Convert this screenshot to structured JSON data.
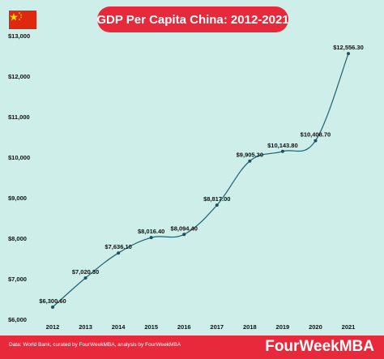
{
  "flag_icon": "china-flag-icon",
  "colors": {
    "background": "#cdeee9",
    "accent": "#e8293b",
    "line": "#1f5f6e",
    "point": "#1f4f5a"
  },
  "header": {
    "title": "GDP Per Capita China: 2012-2021"
  },
  "chart_data": {
    "type": "line",
    "title": "GDP Per Capita China: 2012-2021",
    "xlabel": "",
    "ylabel": "",
    "x": [
      2012,
      2013,
      2014,
      2015,
      2016,
      2017,
      2018,
      2019,
      2020,
      2021
    ],
    "x_tick_labels": [
      "2012",
      "2013",
      "2014",
      "2015",
      "2016",
      "2017",
      "2018",
      "2019",
      "2020",
      "2021"
    ],
    "values": [
      6300.6,
      7020.3,
      7636.1,
      8016.4,
      8094.4,
      8817.0,
      9905.3,
      10143.8,
      10408.7,
      12556.3
    ],
    "data_labels": [
      "$6,300.60",
      "$7,020.30",
      "$7,636.10",
      "$8,016.40",
      "$8,094.40",
      "$8,817.00",
      "$9,905.30",
      "$10,143.80",
      "$10,408.70",
      "$12,556.30"
    ],
    "y_ticks": [
      6000,
      7000,
      8000,
      9000,
      10000,
      11000,
      12000,
      13000
    ],
    "y_tick_labels": [
      "$6,000",
      "$7,000",
      "$8,000",
      "$9,000",
      "$10,000",
      "$11,000",
      "$12,000",
      "$13,000"
    ],
    "ylim": [
      6000,
      13000
    ],
    "grid": false,
    "legend": "none"
  },
  "footer": {
    "source": "Data: World Bank, curated by FourWeekMBA, analysis by FourWeekMBA",
    "brand": "FourWeekMBA"
  }
}
